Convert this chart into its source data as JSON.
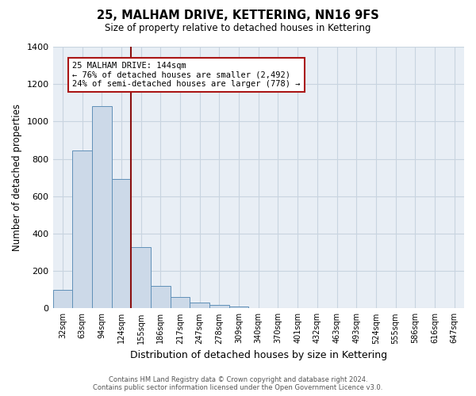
{
  "title": "25, MALHAM DRIVE, KETTERING, NN16 9FS",
  "subtitle": "Size of property relative to detached houses in Kettering",
  "xlabel": "Distribution of detached houses by size in Kettering",
  "ylabel": "Number of detached properties",
  "bar_labels": [
    "32sqm",
    "63sqm",
    "94sqm",
    "124sqm",
    "155sqm",
    "186sqm",
    "217sqm",
    "247sqm",
    "278sqm",
    "309sqm",
    "340sqm",
    "370sqm",
    "401sqm",
    "432sqm",
    "463sqm",
    "493sqm",
    "524sqm",
    "555sqm",
    "586sqm",
    "616sqm",
    "647sqm"
  ],
  "bar_values": [
    100,
    843,
    1080,
    693,
    328,
    120,
    60,
    30,
    18,
    10,
    0,
    0,
    0,
    0,
    0,
    0,
    0,
    0,
    0,
    0,
    0
  ],
  "bar_color": "#ccd9e8",
  "bar_edge_color": "#6090b8",
  "vline_x": 3.5,
  "vline_color": "#8b1010",
  "annotation_title": "25 MALHAM DRIVE: 144sqm",
  "annotation_line1": "← 76% of detached houses are smaller (2,492)",
  "annotation_line2": "24% of semi-detached houses are larger (778) →",
  "annotation_box_color": "#ffffff",
  "annotation_box_edge": "#aa1515",
  "ylim": [
    0,
    1400
  ],
  "yticks": [
    0,
    200,
    400,
    600,
    800,
    1000,
    1200,
    1400
  ],
  "footer1": "Contains HM Land Registry data © Crown copyright and database right 2024.",
  "footer2": "Contains public sector information licensed under the Open Government Licence v3.0.",
  "bg_color": "#ffffff",
  "plot_bg_color": "#e8eef5",
  "grid_color": "#c8d4e0"
}
